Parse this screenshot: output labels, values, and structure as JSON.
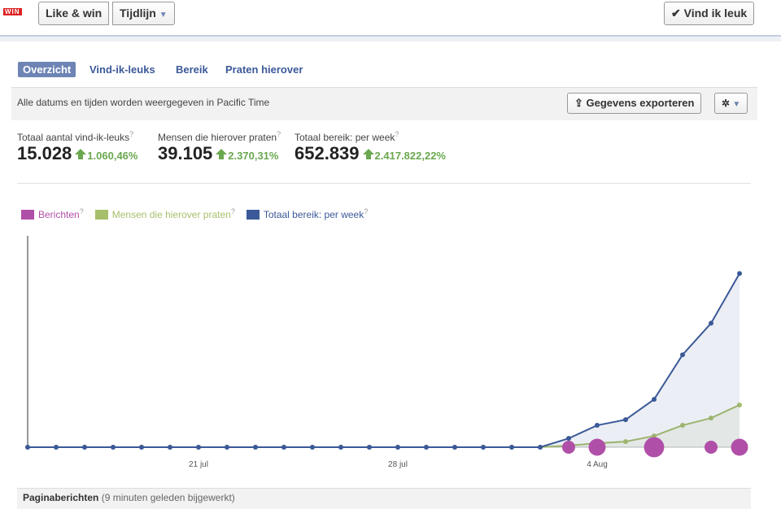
{
  "header": {
    "logo": "WIN",
    "page_button": "Like & win",
    "menu": "Tijdlijn",
    "like_button": "Vind ik leuk"
  },
  "tabs": [
    "Overzicht",
    "Vind-ik-leuks",
    "Bereik",
    "Praten hierover"
  ],
  "notice": "Alle datums en tijden worden weergegeven in Pacific Time",
  "export_button": "Gegevens exporteren",
  "help_mark": "?",
  "stats": [
    {
      "label": "Totaal aantal vind-ik-leuks",
      "value": "15.028",
      "change": "1.060,46%"
    },
    {
      "label": "Mensen die hierover praten",
      "value": "39.105",
      "change": "2.370,31%"
    },
    {
      "label": "Totaal bereik: per week",
      "value": "652.839",
      "change": "2.417.822,22%"
    }
  ],
  "chart_data": {
    "type": "line",
    "categories": [
      null,
      null,
      null,
      null,
      null,
      null,
      "21 jul",
      null,
      null,
      null,
      null,
      null,
      null,
      "28 jul",
      null,
      null,
      null,
      null,
      null,
      null,
      "4 Aug",
      null,
      null,
      null,
      null,
      null
    ],
    "series": [
      {
        "name": "Berichten",
        "type": "bubble",
        "color": "#b04fa8",
        "values": [
          null,
          null,
          null,
          null,
          null,
          null,
          null,
          null,
          null,
          null,
          null,
          null,
          null,
          null,
          null,
          null,
          null,
          null,
          null,
          1,
          2,
          null,
          3,
          null,
          1,
          2
        ]
      },
      {
        "name": "Mensen die hierover praten",
        "type": "area",
        "color": "#a7bf6b",
        "values": [
          0,
          0,
          0,
          0,
          0,
          0,
          0,
          0,
          0,
          0,
          0,
          0,
          0,
          0,
          0,
          0,
          0,
          0,
          0,
          6000,
          15000,
          21000,
          42000,
          82000,
          109000,
          158000
        ]
      },
      {
        "name": "Totaal bereik: per week",
        "type": "area",
        "color": "#3b5998",
        "values": [
          0,
          0,
          0,
          0,
          0,
          0,
          0,
          0,
          0,
          0,
          0,
          0,
          0,
          0,
          0,
          0,
          0,
          0,
          0,
          33000,
          82000,
          103000,
          179000,
          346000,
          464000,
          650000
        ]
      }
    ],
    "ylim": [
      0,
      700000
    ]
  },
  "footer": {
    "title": "Paginaberichten",
    "note": "(9 minuten geleden bijgewerkt)"
  }
}
